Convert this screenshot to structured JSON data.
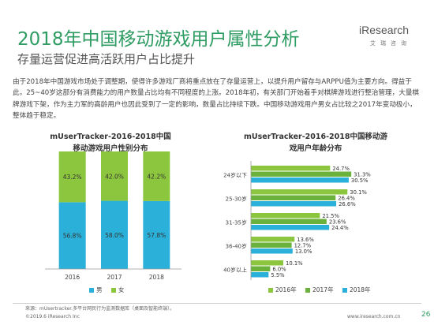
{
  "header": {
    "title": "2018年中国移动游戏用户属性分析",
    "subtitle": "存量运营促进高活跃用户占比提升",
    "logo_name": "iResearch",
    "logo_cn": "艾瑞咨询"
  },
  "body_text": "由于2018年中国游戏市场处于调整期，使得许多游戏厂商将重点放在了存量运营上，以提升用户留存与ARPPU值为主要方向。得益于此，25~40岁这部分有消费能力的用户数量占比均有不同程度的上涨。2018年初，有关部门开始着手对棋牌游戏进行整治管理，大量棋牌游戏下架，作为主力军的高龄用户也因此受到了一定的影响，数量占比持续下跌。中国移动游戏用户男女占比较之2017年变动极小，整体趋于稳定。",
  "colors": {
    "title": "#2f9c63",
    "male": "#2bb0d9",
    "female": "#8cc63f",
    "y2016": "#8cc63f",
    "y2017": "#6ab23c",
    "y2018": "#2bb0d9"
  },
  "chart_data": [
    {
      "type": "bar",
      "stacked": true,
      "title_line1": "mUserTracker-2016-2018中国",
      "title_line2": "移动游戏用户性别分布",
      "categories": [
        "2016",
        "2017",
        "2018"
      ],
      "series": [
        {
          "name": "男",
          "values": [
            56.8,
            58.0,
            57.8
          ],
          "labels": [
            "56.8%",
            "58.0%",
            "57.8%"
          ]
        },
        {
          "name": "女",
          "values": [
            43.2,
            42.0,
            42.2
          ],
          "labels": [
            "43.2%",
            "42.0%",
            "42.2%"
          ]
        }
      ],
      "ylim": [
        0,
        100
      ],
      "grid": false,
      "legend": "bottom"
    },
    {
      "type": "bar",
      "orientation": "horizontal",
      "title_line1": "mUserTracker-2016-2018中国移动游",
      "title_line2": "戏用户年龄分布",
      "categories": [
        "24岁以下",
        "25-30岁",
        "31-35岁",
        "36-40岁",
        "40岁以上"
      ],
      "series": [
        {
          "name": "2016年",
          "values": [
            24.7,
            30.1,
            21.5,
            13.6,
            10.1
          ],
          "labels": [
            "24.7%",
            "30.1%",
            "21.5%",
            "13.6%",
            "10.1%"
          ]
        },
        {
          "name": "2017年",
          "values": [
            31.3,
            26.4,
            23.6,
            12.7,
            6.0
          ],
          "labels": [
            "31.3%",
            "26.4%",
            "23.6%",
            "12.7%",
            "6.0%"
          ]
        },
        {
          "name": "2018年",
          "values": [
            30.5,
            26.6,
            24.4,
            13.0,
            5.5
          ],
          "labels": [
            "30.5%",
            "26.6%",
            "24.4%",
            "13.0%",
            "5.5%"
          ]
        }
      ],
      "grid": false,
      "legend": "bottom"
    }
  ],
  "footer": {
    "source": "来源：mUsertracker.多平台网民行为监测数据库（桌面及智能终端）。",
    "copyright": "©2019.6 iResearch Inc",
    "website": "www.iresearch.com.cn",
    "page": "26"
  }
}
